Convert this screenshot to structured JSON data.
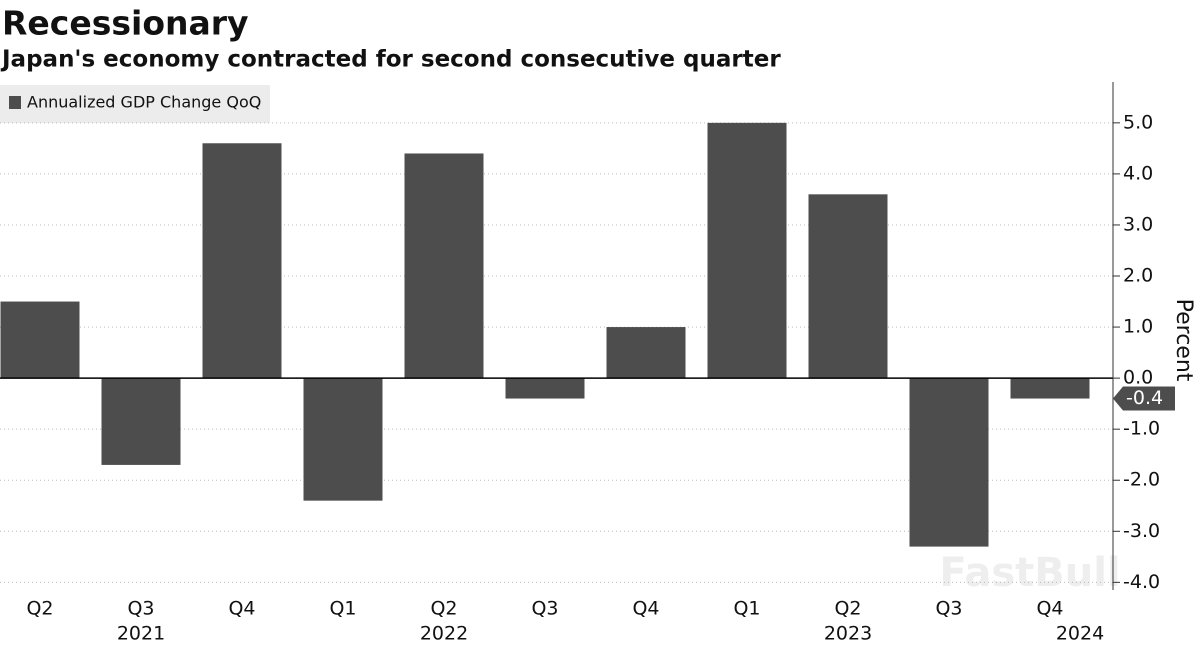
{
  "chart_data": {
    "type": "bar",
    "title": "Recessionary",
    "subtitle": "Japan's economy contracted for second consecutive quarter",
    "legend_label": "Annualized GDP Change QoQ",
    "y_axis_label": "Percent",
    "watermark": "FastBull",
    "categories": [
      "Q2",
      "Q3",
      "Q4",
      "Q1",
      "Q2",
      "Q3",
      "Q4",
      "Q1",
      "Q2",
      "Q3",
      "Q4"
    ],
    "year_labels": [
      null,
      "2021",
      null,
      null,
      "2022",
      null,
      null,
      null,
      "2023",
      null,
      "2024"
    ],
    "values": [
      1.5,
      -1.7,
      4.6,
      -2.4,
      4.4,
      -0.4,
      1.0,
      5.0,
      3.6,
      -3.3,
      -0.4
    ],
    "value_labels": [
      null,
      null,
      null,
      null,
      null,
      null,
      null,
      null,
      null,
      null,
      "-0.4"
    ],
    "color": "#4d4d4d",
    "ylim": [
      -4.15,
      5.8
    ],
    "yticks": [
      {
        "value": 5,
        "label": "5.0"
      },
      {
        "value": 4,
        "label": "4.0"
      },
      {
        "value": 3,
        "label": "3.0"
      },
      {
        "value": 2,
        "label": "2.0"
      },
      {
        "value": 1,
        "label": "1.0"
      },
      {
        "value": 0,
        "label": "0.0"
      },
      {
        "value": -1,
        "label": "-1.0"
      },
      {
        "value": -2,
        "label": "-2.0"
      },
      {
        "value": -3,
        "label": "-3.0"
      },
      {
        "value": -4,
        "label": "-4.0"
      }
    ],
    "grid": true
  }
}
